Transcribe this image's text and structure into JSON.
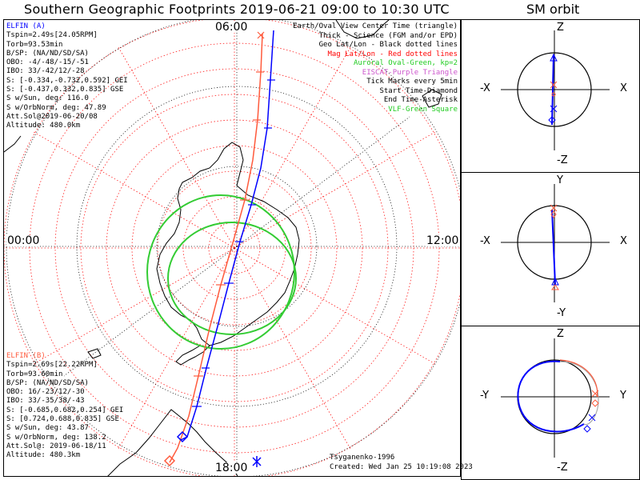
{
  "title": "Southern Geographic Footprints 2019-06-21 09:00 to 10:30 UTC",
  "sm_title": "SM orbit",
  "clock_labels": {
    "top": "06:00",
    "left": "00:00",
    "right": "12:00",
    "bottom": "18:00"
  },
  "elfin_a": {
    "name": "ELFIN (A)",
    "lines": [
      "Tspin=2.49s[24.05RPM]",
      "Torb=93.53min",
      "B/SP: (NA/ND/SD/SA)",
      "OBO: -4/-48/-15/-51",
      "IBO: 33/-42/12/-28",
      "S: [-0.334,-0.732,0.592] GEI",
      "S: [-0.437,0.332,0.835] GSE",
      "S w/Sun, deg: 116.0",
      "S w/OrbNorm, deg: 47.89",
      "Att.Sol@2019-06-20/08",
      "Altitude: 480.0km"
    ],
    "color": "#0000ff"
  },
  "elfin_b": {
    "name": "ELFIN (B)",
    "lines": [
      "Tspin=2.69s[22.22RPM]",
      "Torb=93.60min",
      "B/SP: (NA/ND/SD/SA)",
      "OBO: 16/-23/12/-30",
      "IBO: 33/-35/38/-43",
      "S: [-0.685,0.682,0.254] GEI",
      "S: [0.724,0.688,0.835] GSE",
      "S w/Sun, deg: 43.87",
      "S w/OrbNorm, deg: 138.2",
      "Att.Sol@: 2019-06-18/11",
      "Altitude: 480.3km"
    ],
    "color": "#ff5a3c"
  },
  "legend": [
    {
      "text": "Earth/Oval View Center Time (triangle)",
      "color": "#000000"
    },
    {
      "text": "Thick - Science (FGM and/or EPD)",
      "color": "#000000"
    },
    {
      "text": "Geo Lat/Lon - Black dotted lines",
      "color": "#000000"
    },
    {
      "text": "Mag Lat/Lon - Red dotted lines",
      "color": "#ff0000"
    },
    {
      "text": "Auroral Oval-Green, kp=2",
      "color": "#22cc22"
    },
    {
      "text": "EISCAT-Purple Triangle",
      "color": "#cc55cc"
    },
    {
      "text": "Tick Marks every 5min",
      "color": "#000000"
    },
    {
      "text": "Start Time-Diamond",
      "color": "#000000"
    },
    {
      "text": "End Time-Asterisk",
      "color": "#000000"
    },
    {
      "text": "VLF-Green Square",
      "color": "#22cc22"
    }
  ],
  "footer": {
    "model": "Tsyganenko-1996",
    "created": "Created: Wed Jan 25 10:19:08 2023"
  },
  "panels": [
    {
      "top": "Z",
      "bottom": "-Z",
      "left": "-X",
      "right": "X"
    },
    {
      "top": "Y",
      "bottom": "-Y",
      "left": "-X",
      "right": "X"
    },
    {
      "top": "Z",
      "bottom": "-Z",
      "left": "-Y",
      "right": "Y"
    }
  ],
  "colors": {
    "geo_grid": "#000000",
    "mag_grid": "#ff2020",
    "auroral_oval": "#33cc33",
    "coast": "#000000"
  }
}
